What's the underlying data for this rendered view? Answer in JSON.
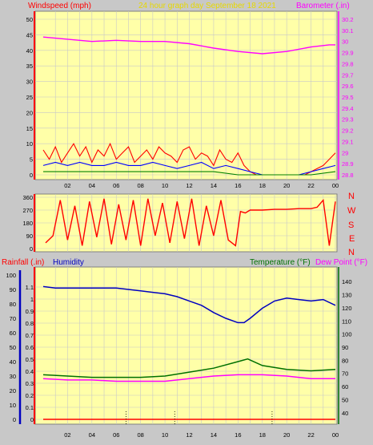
{
  "colors": {
    "window_bg": "#c8c8c8",
    "plot_bg": "#ffffa8",
    "grid": "#c8c8c8",
    "wind_avg": "#ff0000",
    "wind_gust": "#0000ff",
    "wind_low": "#008000",
    "barometer": "#ff00ff",
    "wind_direction": "#ff0000",
    "rainfall": "#ff0000",
    "humidity": "#0000c0",
    "temperature": "#007000",
    "dew_point": "#ff00ff",
    "title": "#e6d800"
  },
  "header": {
    "windspeed_label": "Windspeed (mph)",
    "title": "24 hour graph day   September 18 2021",
    "barometer_label": "Barometer (.in)"
  },
  "lower_header": {
    "rainfall_label": "Rainfall (.in)",
    "humidity_label": "Humidity",
    "temperature_label": "Temperature (°F)",
    "dew_point_label": "Dew Point (°F)"
  },
  "direction_labels": [
    "N",
    "W",
    "S",
    "E",
    "N"
  ],
  "x_tick_labels": [
    "02",
    "04",
    "06",
    "08",
    "10",
    "12",
    "14",
    "16",
    "18",
    "20",
    "22",
    "00"
  ],
  "chart_data": [
    {
      "type": "line",
      "panel": "wind_barometer",
      "x_range_hours": [
        0,
        24
      ],
      "x_ticks": [
        "02",
        "04",
        "06",
        "08",
        "10",
        "12",
        "14",
        "16",
        "18",
        "20",
        "22",
        "00"
      ],
      "y_left": {
        "label": "Windspeed (mph)",
        "range": [
          0,
          50
        ],
        "ticks": [
          0,
          5,
          10,
          15,
          20,
          25,
          30,
          35,
          40,
          45,
          50
        ]
      },
      "y_right": {
        "label": "Barometer (.in)",
        "range": [
          28.8,
          30.2
        ],
        "ticks": [
          "28.8",
          "28.9",
          "29",
          "29.1",
          "29.2",
          "29.3",
          "29.4",
          "29.5",
          "29.6",
          "29.7",
          "29.8",
          "29.9",
          "30",
          "30.1",
          "30.2"
        ]
      },
      "series": [
        {
          "name": "Barometer (.in)",
          "axis": "right",
          "x": [
            0,
            2,
            4,
            6,
            8,
            10,
            12,
            14,
            16,
            18,
            20,
            22,
            23.5,
            24
          ],
          "values": [
            30.04,
            30.02,
            30.0,
            30.01,
            30.0,
            30.0,
            29.98,
            29.94,
            29.91,
            29.89,
            29.91,
            29.95,
            29.97,
            29.97
          ]
        },
        {
          "axis": "left",
          "x": [
            0,
            0.5,
            1,
            1.5,
            2,
            2.5,
            3,
            3.5,
            4,
            4.5,
            5,
            5.5,
            6,
            6.5,
            7,
            7.5,
            8,
            8.5,
            9,
            9.5,
            10,
            10.5,
            11,
            11.5,
            12,
            12.5,
            13,
            13.5,
            14,
            14.5,
            15,
            15.5,
            16,
            16.5,
            17,
            17.5,
            18,
            18.5,
            19,
            19.5,
            20,
            20.5,
            21,
            21.5,
            22,
            22.5,
            23,
            23.5,
            24
          ],
          "values": [
            8,
            5,
            9,
            4,
            7,
            10,
            6,
            9,
            4,
            8,
            6,
            10,
            5,
            7,
            9,
            4,
            6,
            8,
            5,
            9,
            7,
            6,
            4,
            8,
            9,
            5,
            7,
            6,
            3,
            8,
            5,
            4,
            7,
            3,
            1,
            0,
            0,
            0,
            0,
            0,
            0,
            0,
            0,
            0,
            1,
            2,
            3,
            5,
            7
          ]
        },
        {
          "axis": "left",
          "x": [
            0,
            1,
            2,
            3,
            4,
            5,
            6,
            7,
            8,
            9,
            10,
            11,
            12,
            13,
            14,
            15,
            16,
            17,
            18,
            19,
            20,
            21,
            22,
            23,
            24
          ],
          "values": [
            3,
            4,
            3,
            4,
            3,
            3,
            4,
            3,
            3,
            4,
            3,
            2,
            3,
            4,
            2,
            3,
            2,
            1,
            0,
            0,
            0,
            0,
            1,
            2,
            3
          ]
        },
        {
          "axis": "left",
          "x": [
            0,
            2,
            4,
            6,
            8,
            10,
            12,
            14,
            16,
            18,
            20,
            22,
            24
          ],
          "values": [
            1,
            1,
            1,
            1,
            1,
            1,
            1,
            1,
            0,
            0,
            0,
            0,
            1
          ]
        }
      ]
    },
    {
      "type": "scatter",
      "panel": "wind_direction",
      "x_range_hours": [
        0,
        24
      ],
      "y_range_degrees": [
        0,
        360
      ],
      "y_ticks": [
        0,
        90,
        180,
        270,
        360
      ],
      "series": [
        {
          "x": [
            0.2,
            0.8,
            1.4,
            2.0,
            2.6,
            3.2,
            3.8,
            4.4,
            5.0,
            5.6,
            6.2,
            6.8,
            7.4,
            8.0,
            8.6,
            9.2,
            9.8,
            10.4,
            11.0,
            11.6,
            12.2,
            12.8,
            13.4,
            14.0,
            14.6,
            15.2,
            15.8,
            16.2,
            16.6,
            17.0,
            18,
            19,
            20,
            21,
            22,
            22.5,
            23,
            23.5,
            24
          ],
          "values": [
            40,
            90,
            340,
            60,
            300,
            20,
            330,
            80,
            350,
            30,
            310,
            60,
            340,
            20,
            350,
            90,
            320,
            40,
            330,
            70,
            350,
            20,
            300,
            90,
            340,
            60,
            20,
            260,
            250,
            270,
            270,
            275,
            275,
            280,
            280,
            290,
            340,
            20,
            330
          ]
        }
      ]
    },
    {
      "type": "line",
      "panel": "rain_humidity_temperature",
      "x_range_hours": [
        0,
        24
      ],
      "x_ticks": [
        "02",
        "04",
        "06",
        "08",
        "10",
        "12",
        "14",
        "16",
        "18",
        "20",
        "22",
        "00"
      ],
      "y_left_humidity": {
        "label": "Humidity",
        "range": [
          0,
          100
        ],
        "ticks": [
          0,
          10,
          20,
          30,
          40,
          50,
          60,
          70,
          80,
          90,
          100
        ]
      },
      "y_left_rain": {
        "label": "Rainfall (.in)",
        "range": [
          0,
          1.2
        ],
        "ticks": [
          "0",
          "0.1",
          "0.2",
          "0.3",
          "0.4",
          "0.5",
          "0.6",
          "0.7",
          "0.8",
          "0.9",
          "1",
          "1.1"
        ]
      },
      "y_right": {
        "label": "Temperature (°F)",
        "range": [
          35,
          145
        ],
        "ticks": [
          40,
          50,
          60,
          70,
          80,
          90,
          100,
          110,
          120,
          130,
          140
        ]
      },
      "series": [
        {
          "name": "Humidity",
          "axis": "humidity",
          "x": [
            0,
            1,
            2,
            3,
            4,
            5,
            6,
            7,
            8,
            9,
            10,
            11,
            12,
            13,
            14,
            15,
            16,
            16.5,
            17,
            18,
            19,
            20,
            21,
            22,
            23,
            24
          ],
          "values": [
            92,
            91,
            91,
            91,
            91,
            91,
            91,
            90,
            89,
            88,
            87,
            85,
            82,
            79,
            74,
            70,
            67,
            67,
            70,
            77,
            82,
            84,
            83,
            82,
            83,
            79
          ]
        },
        {
          "name": "Temperature (°F)",
          "axis": "right",
          "x": [
            0,
            2,
            4,
            6,
            8,
            10,
            12,
            14,
            16,
            16.8,
            18,
            20,
            22,
            24
          ],
          "values": [
            69,
            68,
            67,
            67,
            67,
            68,
            71,
            74,
            79,
            81,
            76,
            73,
            72,
            73
          ]
        },
        {
          "name": "Dew Point (°F)",
          "axis": "right",
          "x": [
            0,
            2,
            4,
            6,
            8,
            10,
            12,
            14,
            16,
            18,
            20,
            22,
            24
          ],
          "values": [
            66,
            65,
            65,
            64,
            64,
            64,
            66,
            68,
            69,
            69,
            68,
            66,
            66
          ]
        },
        {
          "name": "Rainfall (.in)",
          "axis": "rain",
          "x": [
            0,
            24
          ],
          "values": [
            0,
            0
          ]
        }
      ]
    }
  ]
}
